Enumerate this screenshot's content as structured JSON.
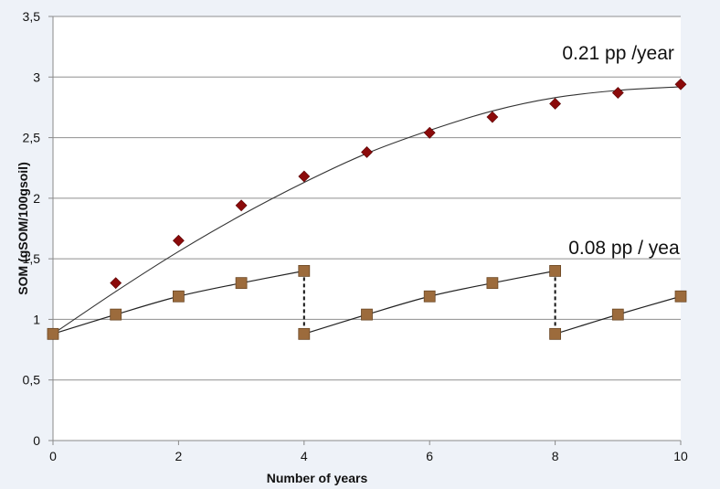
{
  "chart_data": {
    "type": "scatter",
    "xlabel": "Number of years",
    "ylabel": "SOM (gSOM/100gsoil)",
    "xlim": [
      0,
      10
    ],
    "ylim": [
      0,
      3.5
    ],
    "x_ticks": [
      0,
      2,
      4,
      6,
      8,
      10
    ],
    "x_tick_labels": [
      "0",
      "2",
      "4",
      "6",
      "8",
      "10"
    ],
    "y_ticks": [
      0,
      0.5,
      1,
      1.5,
      2,
      2.5,
      3,
      3.5
    ],
    "y_tick_labels": [
      "0",
      "0,5",
      "1",
      "1,5",
      "2",
      "2,5",
      "3",
      "3,5"
    ],
    "grid": "horizontal",
    "series": [
      {
        "marker": "diamond",
        "color": "#8b0a0a",
        "x": [
          0,
          1,
          2,
          3,
          4,
          5,
          6,
          7,
          8,
          9,
          10
        ],
        "values": [
          0.88,
          1.3,
          1.65,
          1.94,
          2.18,
          2.38,
          2.54,
          2.67,
          2.78,
          2.87,
          2.94
        ],
        "trend": {
          "x": [
            0,
            1,
            2,
            3,
            4,
            5,
            6,
            7,
            8,
            9,
            10
          ],
          "y": [
            0.88,
            1.23,
            1.56,
            1.86,
            2.13,
            2.37,
            2.56,
            2.72,
            2.83,
            2.89,
            2.92
          ]
        }
      },
      {
        "marker": "square",
        "color": "#9c6b3c",
        "x": [
          0,
          1,
          2,
          3,
          4,
          4,
          5,
          6,
          7,
          8,
          8,
          9,
          10
        ],
        "values": [
          0.88,
          1.04,
          1.19,
          1.3,
          1.4,
          0.88,
          1.04,
          1.19,
          1.3,
          1.4,
          0.88,
          1.04,
          1.19
        ],
        "segments": [
          {
            "x": [
              0,
              1,
              2,
              3,
              4
            ],
            "y": [
              0.88,
              1.04,
              1.19,
              1.3,
              1.4
            ]
          },
          {
            "x": [
              4,
              5,
              6,
              7,
              8
            ],
            "y": [
              0.88,
              1.04,
              1.19,
              1.3,
              1.4
            ]
          },
          {
            "x": [
              8,
              9,
              10
            ],
            "y": [
              0.88,
              1.04,
              1.19
            ]
          }
        ],
        "drops": [
          {
            "x": 4,
            "from": 1.4,
            "to": 0.88
          },
          {
            "x": 8,
            "from": 1.4,
            "to": 0.88
          }
        ]
      }
    ],
    "annotations": [
      {
        "text": "0.21 pp /year",
        "x": 8.2,
        "y": 3.2
      },
      {
        "text": "0.08 pp / yea",
        "x": 8.3,
        "y": 1.59
      }
    ]
  }
}
